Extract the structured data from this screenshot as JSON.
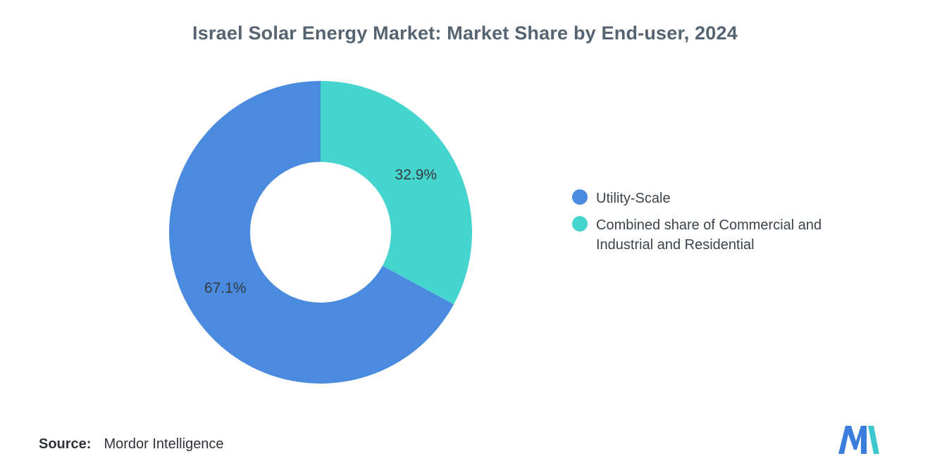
{
  "title": "Israel Solar Energy Market: Market Share by End-user, 2024",
  "source": {
    "label": "Source:",
    "value": "Mordor Intelligence"
  },
  "legend": {
    "items": [
      {
        "label": "Utility-Scale",
        "color": "#4A8BDF"
      },
      {
        "label": "Combined share of Commercial and Industrial and Residential",
        "color": "#46D5CE"
      }
    ]
  },
  "chart_data": {
    "type": "pie",
    "donut": true,
    "title": "Israel Solar Energy Market: Market Share by End-user, 2024",
    "categories": [
      "Utility-Scale",
      "Combined share of Commercial and Industrial and Residential"
    ],
    "values": [
      67.1,
      32.9
    ],
    "unit": "%",
    "labels": [
      "67.1%",
      "32.9%"
    ],
    "colors": [
      "#4A8BDF",
      "#46D5CE"
    ],
    "names": [
      "utility-scale",
      "combined-commercial-industrial-residential"
    ],
    "start_angle_deg": 118.44,
    "direction": "clockwise",
    "legend_position": "right"
  },
  "logo_colors": {
    "blue": "#3B7DDD",
    "teal": "#3EC6CE"
  }
}
